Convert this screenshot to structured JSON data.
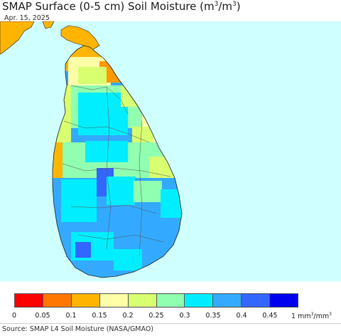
{
  "header": {
    "title_main": "SMAP Surface (0-5 cm) Soil Moisture (m",
    "title_sup1": "3",
    "title_mid": "/m",
    "title_sup2": "3",
    "title_end": ")",
    "date": "Apr. 15, 2025"
  },
  "map": {
    "ocean_color": "#cfffff",
    "land_base_color": "#33aaff",
    "region": "Sri Lanka"
  },
  "legend": {
    "colors": [
      "#ff0000",
      "#ff7700",
      "#ffb500",
      "#ffffa8",
      "#d8ff70",
      "#90ffb0",
      "#00eeff",
      "#34aaff",
      "#3366ff",
      "#0000ee"
    ],
    "labels": [
      "0",
      "0.05",
      "0.1",
      "0.15",
      "0.2",
      "0.25",
      "0.3",
      "0.35",
      "0.4",
      "0.45",
      "1"
    ],
    "unit_prefix": "mm",
    "unit_sup1": "3",
    "unit_mid": "/mm",
    "unit_sup2": "3"
  },
  "footer": {
    "source": "Source: SMAP L4 Soil Moisture (NASA/GMAO)"
  }
}
